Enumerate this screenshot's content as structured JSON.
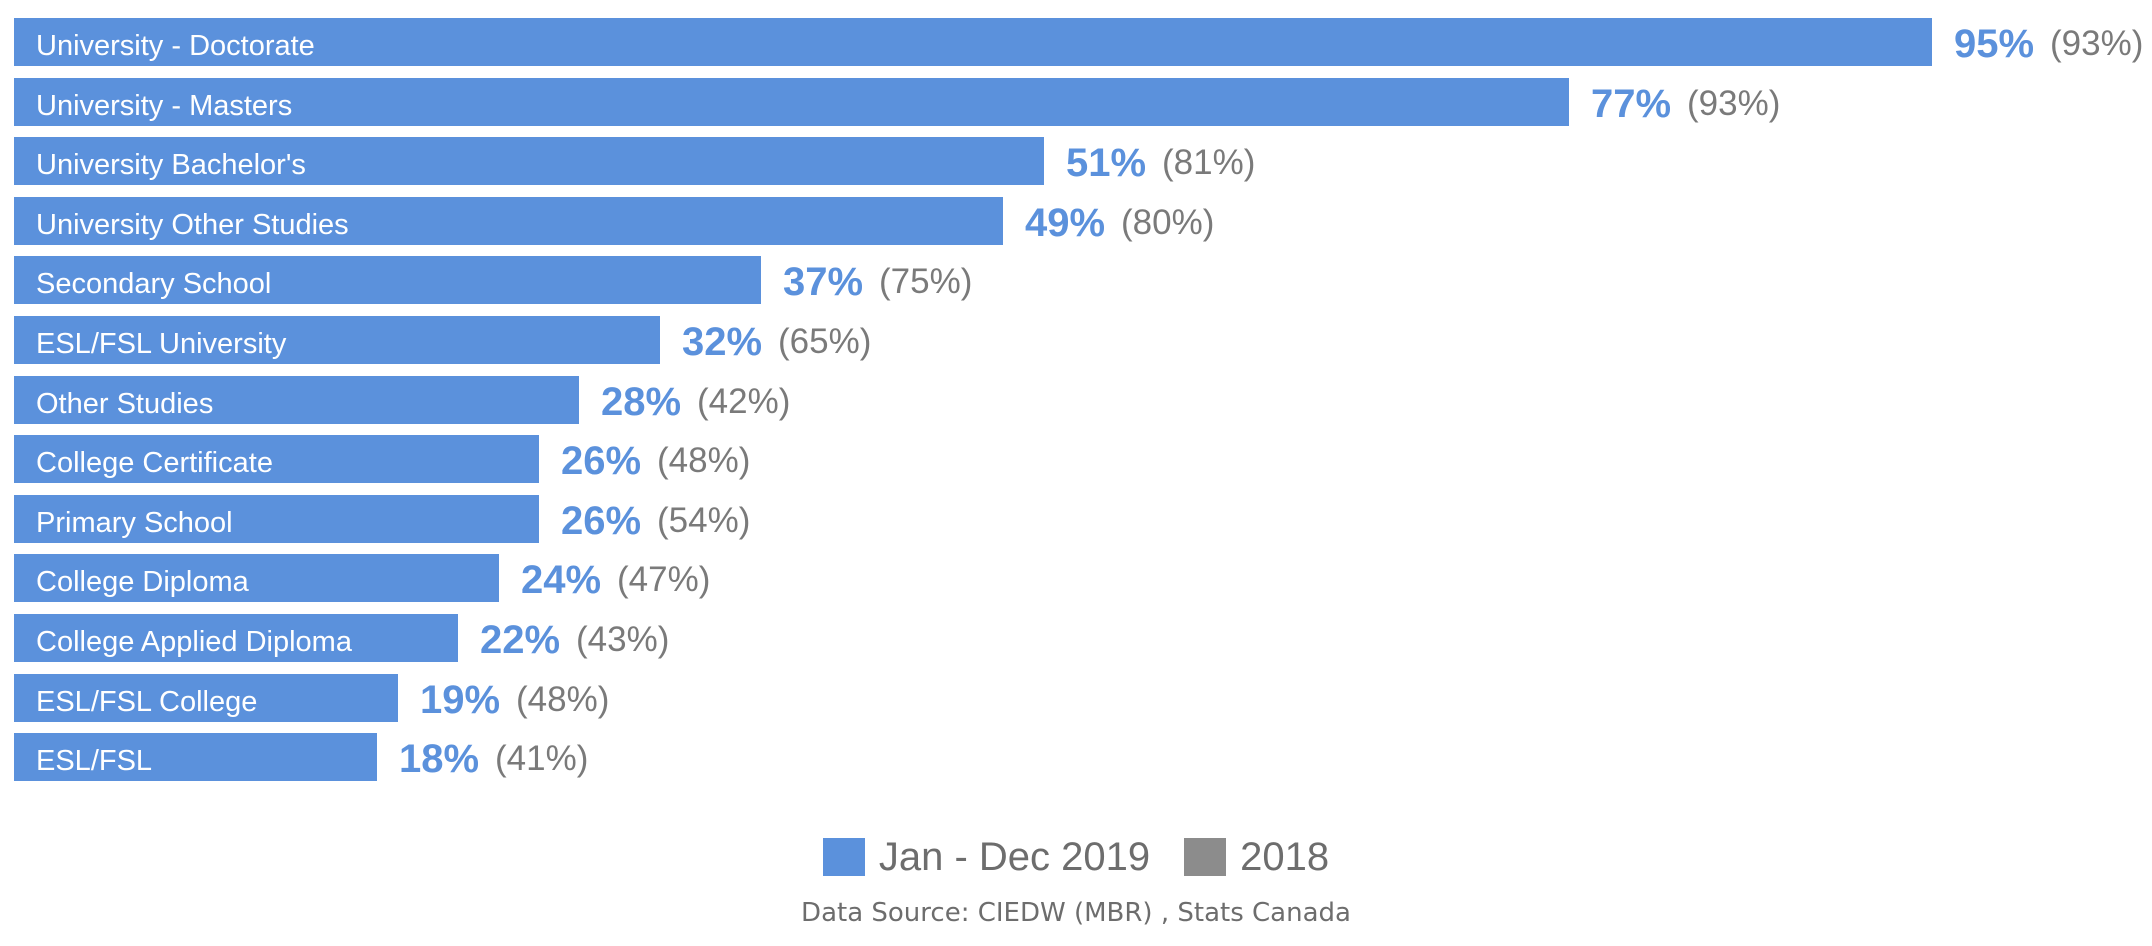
{
  "chart_data": {
    "type": "bar",
    "orientation": "horizontal",
    "categories": [
      "University - Doctorate",
      "University - Masters",
      "University Bachelor's",
      "University Other Studies",
      "Secondary School",
      "ESL/FSL University",
      "Other Studies",
      "College Certificate",
      "Primary School",
      "College Diploma",
      "College Applied Diploma",
      "ESL/FSL College",
      "ESL/FSL"
    ],
    "series": [
      {
        "name": "Jan - Dec 2019",
        "color": "#5b91dc",
        "values": [
          95,
          77,
          51,
          49,
          37,
          32,
          28,
          26,
          26,
          24,
          22,
          19,
          18
        ],
        "labels": [
          "95%",
          "77%",
          "51%",
          "49%",
          "37%",
          "32%",
          "28%",
          "26%",
          "26%",
          "24%",
          "22%",
          "19%",
          "18%"
        ]
      },
      {
        "name": "2018",
        "color": "#8c8c8c",
        "values": [
          93,
          93,
          81,
          80,
          75,
          65,
          42,
          48,
          54,
          47,
          43,
          48,
          41
        ],
        "labels": [
          "(93%)",
          "(93%)",
          "(81%)",
          "(80%)",
          "(75%)",
          "(65%)",
          "(42%)",
          "(48%)",
          "(54%)",
          "(47%)",
          "(43%)",
          "(48%)",
          "(41%)"
        ]
      }
    ],
    "value_label_color": "#5b91dc",
    "prev_label_color": "#7a7a7a",
    "legend_text_color": "#6d6d6d",
    "legend_position": "bottom-center",
    "grid": false,
    "axes_visible": false,
    "title": "",
    "xlabel": "",
    "ylabel": ""
  },
  "legend": [
    {
      "label": "Jan - Dec 2019",
      "color": "#5b91dc"
    },
    {
      "label": "2018",
      "color": "#8c8c8c"
    }
  ],
  "source": "Data Source: CIEDW (MBR) , Stats Canada"
}
